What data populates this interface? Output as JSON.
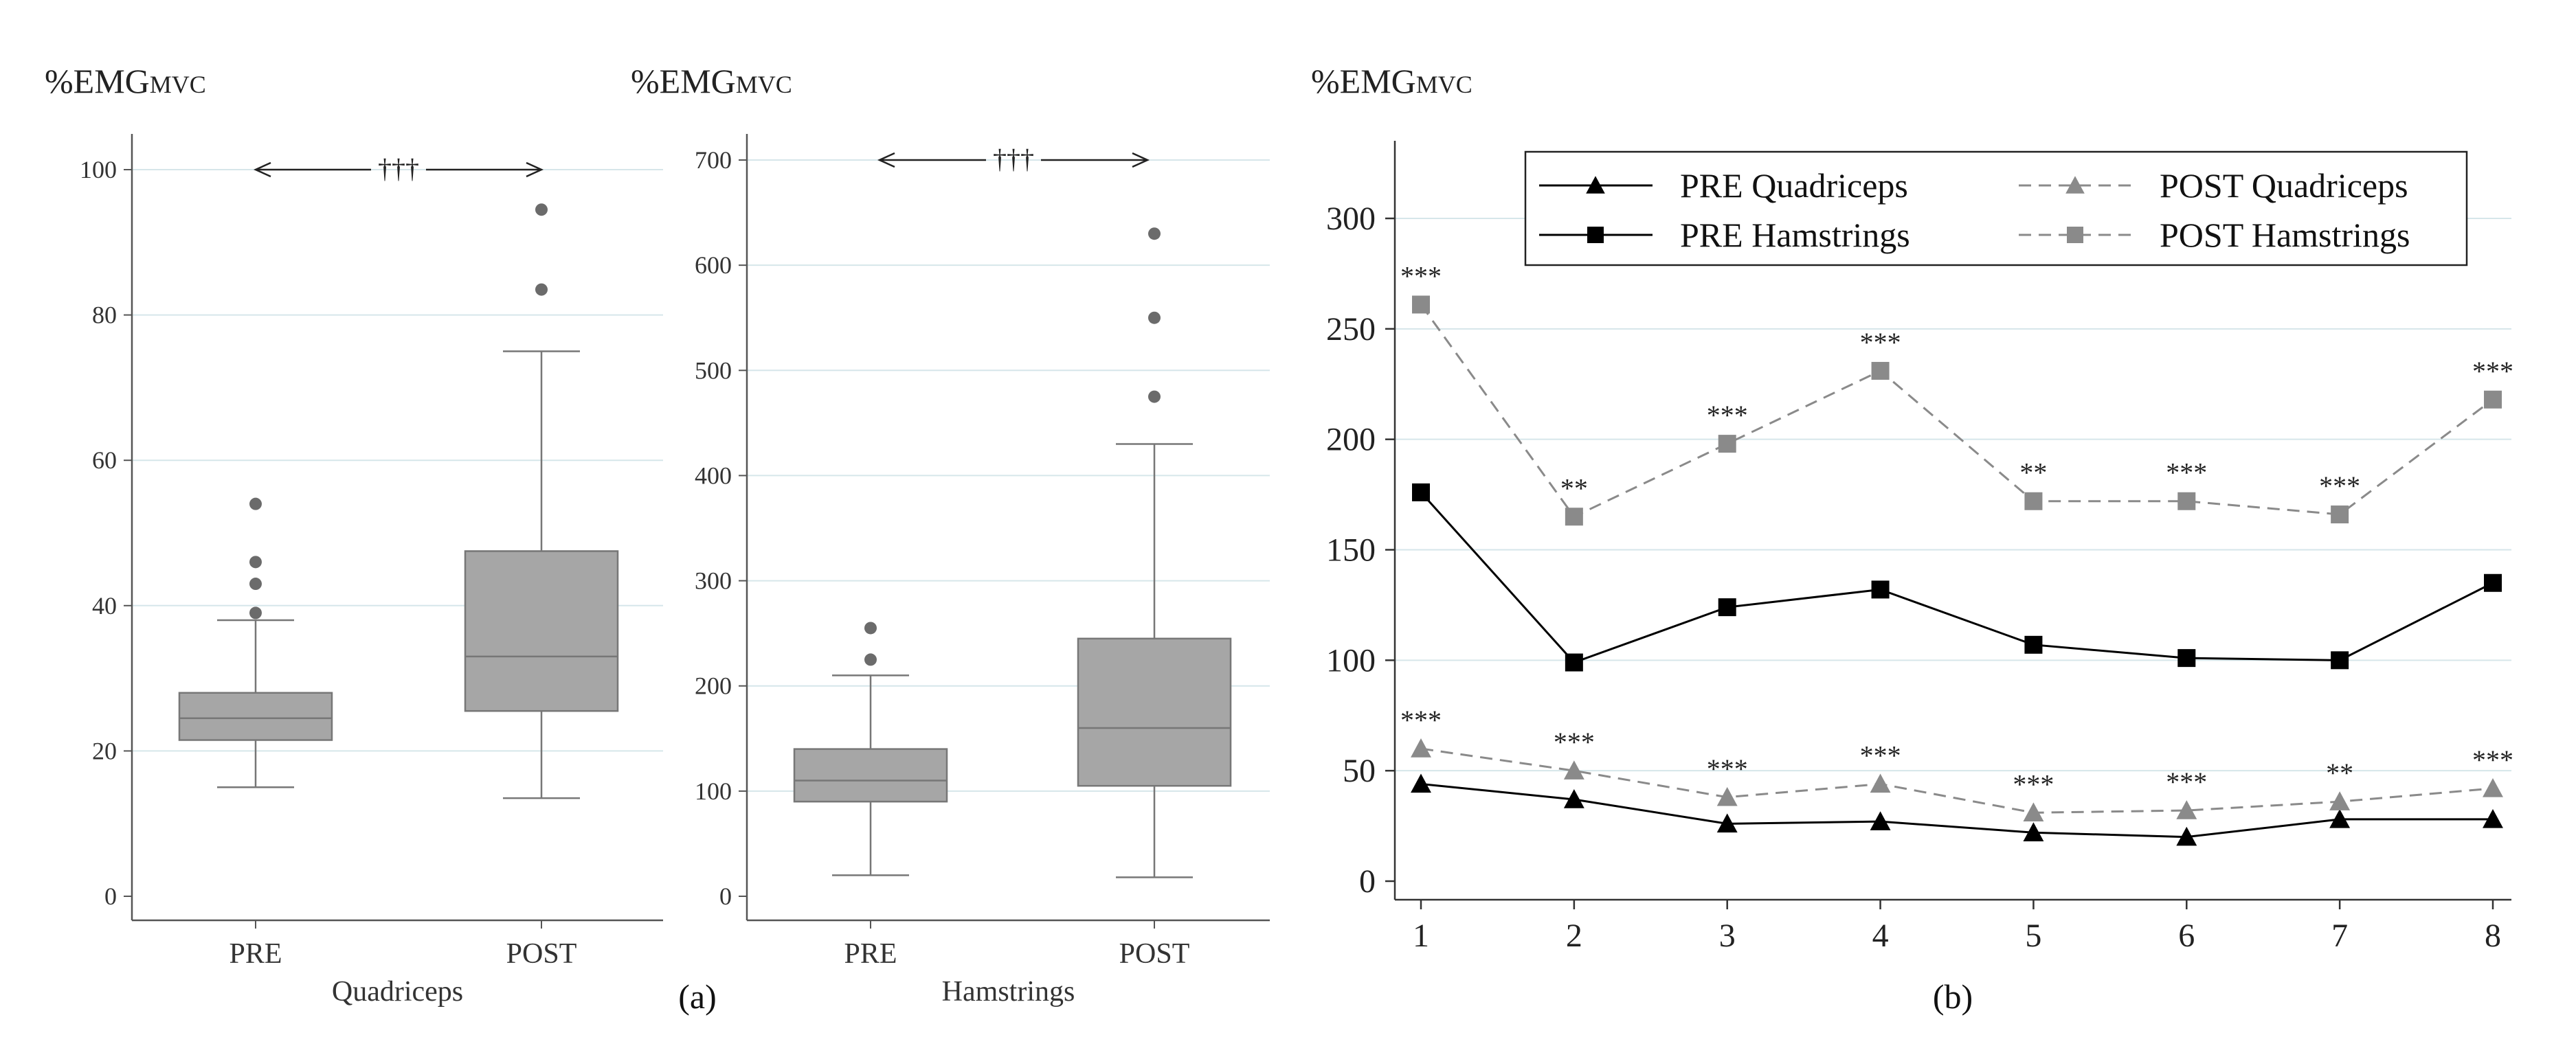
{
  "figure": {
    "panel_a_label": "(a)",
    "panel_b_label": "(b)"
  },
  "colors": {
    "box_fill": "#a6a6a6",
    "box_stroke": "#777777",
    "outlier": "#6b6b6b",
    "grid": "#d6e6ea",
    "pre_line": "#000000",
    "post_line": "#8a8a8a"
  },
  "chart_data": [
    {
      "id": "quadriceps_box",
      "type": "box",
      "ylabel_main": "%EMG",
      "ylabel_sub": "MVC",
      "xlabel": "Quadriceps",
      "ylim": [
        0,
        100
      ],
      "yticks": [
        0,
        20,
        40,
        60,
        80,
        100
      ],
      "significance": "†††",
      "categories": [
        "PRE",
        "POST"
      ],
      "boxes": [
        {
          "name": "PRE",
          "whisker_low": 15,
          "q1": 21.5,
          "median": 24.5,
          "q3": 28,
          "whisker_high": 38,
          "outliers": [
            39,
            43,
            46,
            54
          ]
        },
        {
          "name": "POST",
          "whisker_low": 13.5,
          "q1": 25.5,
          "median": 33,
          "q3": 47.5,
          "whisker_high": 75,
          "outliers": [
            83.5,
            94.5
          ]
        }
      ]
    },
    {
      "id": "hamstrings_box",
      "type": "box",
      "ylabel_main": "%EMG",
      "ylabel_sub": "MVC",
      "xlabel": "Hamstrings",
      "ylim": [
        0,
        700
      ],
      "yticks": [
        0,
        100,
        200,
        300,
        400,
        500,
        600,
        700
      ],
      "significance": "†††",
      "categories": [
        "PRE",
        "POST"
      ],
      "boxes": [
        {
          "name": "PRE",
          "whisker_low": 20,
          "q1": 90,
          "median": 110,
          "q3": 140,
          "whisker_high": 210,
          "outliers": [
            225,
            255
          ]
        },
        {
          "name": "POST",
          "whisker_low": 18,
          "q1": 105,
          "median": 160,
          "q3": 245,
          "whisker_high": 430,
          "outliers": [
            475,
            550,
            630
          ]
        }
      ]
    },
    {
      "id": "line_chart",
      "type": "line",
      "ylabel_main": "%EMG",
      "ylabel_sub": "MVC",
      "ylim": [
        0,
        330
      ],
      "yticks": [
        0,
        50,
        100,
        150,
        200,
        250,
        300
      ],
      "x": [
        1,
        2,
        3,
        4,
        5,
        6,
        7,
        8
      ],
      "series": [
        {
          "name": "PRE Quadriceps",
          "marker": "triangle",
          "style": "solid",
          "values": [
            44,
            37,
            26,
            27,
            22,
            20,
            28,
            28
          ]
        },
        {
          "name": "PRE Hamstrings",
          "marker": "square",
          "style": "solid",
          "values": [
            176,
            99,
            124,
            132,
            107,
            101,
            100,
            135
          ]
        },
        {
          "name": "POST Quadriceps",
          "marker": "triangle",
          "style": "dashed",
          "values": [
            60,
            50,
            38,
            44,
            31,
            32,
            36,
            42
          ],
          "annotations": [
            "***",
            "***",
            "***",
            "***",
            "***",
            "***",
            "**",
            "***"
          ]
        },
        {
          "name": "POST Hamstrings",
          "marker": "square",
          "style": "dashed",
          "values": [
            261,
            165,
            198,
            231,
            172,
            172,
            166,
            218
          ],
          "annotations": [
            "***",
            "**",
            "***",
            "***",
            "**",
            "***",
            "***",
            "***"
          ]
        }
      ]
    }
  ]
}
